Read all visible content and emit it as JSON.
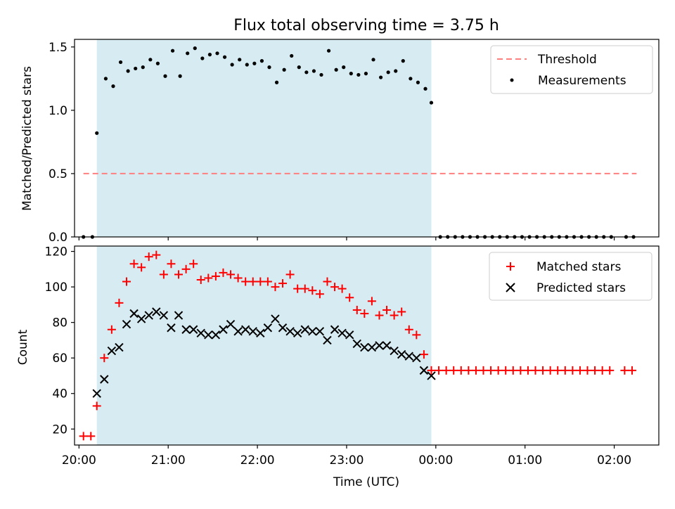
{
  "title": "Flux total observing time = 3.75 h",
  "colors": {
    "shade": "#add8e6",
    "threshold": "#ff7f7f",
    "measurement": "#000000",
    "matched": "#ff0000",
    "predicted": "#000000"
  },
  "chart_data": [
    {
      "type": "scatter",
      "ylabel": "Matched/Predicted stars",
      "ylim": [
        0,
        1.56
      ],
      "yticks": [
        0.0,
        0.5,
        1.0,
        1.5
      ],
      "ytick_labels": [
        "0.0",
        "0.5",
        "1.0",
        "1.5"
      ],
      "xlim": [
        "19:57",
        "02:30"
      ],
      "shaded_region": [
        "20:12",
        "23:57"
      ],
      "legend_position": "upper right",
      "threshold": {
        "name": "Threshold",
        "y": 0.5,
        "x": [
          "20:03",
          "02:15"
        ]
      },
      "series": [
        {
          "name": "Measurements",
          "x": [
            "20:03",
            "20:09",
            "20:12",
            "20:18",
            "20:23",
            "20:28",
            "20:33",
            "20:38",
            "20:43",
            "20:48",
            "20:53",
            "20:58",
            "21:03",
            "21:08",
            "21:13",
            "21:18",
            "21:23",
            "21:28",
            "21:33",
            "21:38",
            "21:43",
            "21:48",
            "21:53",
            "21:58",
            "22:03",
            "22:08",
            "22:13",
            "22:18",
            "22:23",
            "22:28",
            "22:33",
            "22:38",
            "22:43",
            "22:48",
            "22:53",
            "22:58",
            "23:03",
            "23:08",
            "23:13",
            "23:18",
            "23:23",
            "23:28",
            "23:33",
            "23:38",
            "23:43",
            "23:48",
            "23:53",
            "23:57",
            "00:03",
            "00:08",
            "00:13",
            "00:18",
            "00:23",
            "00:28",
            "00:33",
            "00:38",
            "00:43",
            "00:48",
            "00:53",
            "00:58",
            "01:03",
            "01:08",
            "01:13",
            "01:18",
            "01:23",
            "01:28",
            "01:33",
            "01:38",
            "01:43",
            "01:48",
            "01:53",
            "01:58",
            "02:08",
            "02:13"
          ],
          "y": [
            0,
            0,
            0.82,
            1.25,
            1.19,
            1.38,
            1.31,
            1.33,
            1.34,
            1.4,
            1.37,
            1.27,
            1.47,
            1.27,
            1.45,
            1.49,
            1.41,
            1.44,
            1.45,
            1.42,
            1.36,
            1.4,
            1.36,
            1.37,
            1.39,
            1.34,
            1.22,
            1.32,
            1.43,
            1.34,
            1.3,
            1.31,
            1.28,
            1.47,
            1.32,
            1.34,
            1.29,
            1.28,
            1.29,
            1.4,
            1.26,
            1.3,
            1.31,
            1.39,
            1.25,
            1.22,
            1.17,
            1.06,
            0,
            0,
            0,
            0,
            0,
            0,
            0,
            0,
            0,
            0,
            0,
            0,
            0,
            0,
            0,
            0,
            0,
            0,
            0,
            0,
            0,
            0,
            0,
            0,
            0,
            0
          ]
        }
      ]
    },
    {
      "type": "scatter",
      "xlabel": "Time (UTC)",
      "ylabel": "Count",
      "ylim": [
        11,
        123
      ],
      "yticks": [
        20,
        40,
        60,
        80,
        100,
        120
      ],
      "ytick_labels": [
        "20",
        "40",
        "60",
        "80",
        "100",
        "120"
      ],
      "xlim": [
        "19:57",
        "02:30"
      ],
      "xticks": [
        "20:00",
        "21:00",
        "22:00",
        "23:00",
        "00:00",
        "01:00",
        "02:00"
      ],
      "shaded_region": [
        "20:12",
        "23:57"
      ],
      "legend_position": "upper right",
      "series": [
        {
          "name": "Matched stars",
          "x": [
            "20:03",
            "20:08",
            "20:12",
            "20:17",
            "20:22",
            "20:27",
            "20:32",
            "20:37",
            "20:42",
            "20:47",
            "20:52",
            "20:57",
            "21:02",
            "21:07",
            "21:12",
            "21:17",
            "21:22",
            "21:27",
            "21:32",
            "21:37",
            "21:42",
            "21:47",
            "21:52",
            "21:57",
            "22:02",
            "22:07",
            "22:12",
            "22:17",
            "22:22",
            "22:27",
            "22:32",
            "22:37",
            "22:42",
            "22:47",
            "22:52",
            "22:57",
            "23:02",
            "23:07",
            "23:12",
            "23:17",
            "23:22",
            "23:27",
            "23:32",
            "23:37",
            "23:42",
            "23:47",
            "23:52",
            "23:57",
            "00:02",
            "00:07",
            "00:12",
            "00:17",
            "00:22",
            "00:27",
            "00:32",
            "00:37",
            "00:42",
            "00:47",
            "00:52",
            "00:57",
            "01:02",
            "01:07",
            "01:12",
            "01:17",
            "01:22",
            "01:27",
            "01:32",
            "01:37",
            "01:42",
            "01:47",
            "01:52",
            "01:57",
            "02:07",
            "02:12"
          ],
          "y": [
            16,
            16,
            33,
            60,
            76,
            91,
            103,
            113,
            111,
            117,
            118,
            107,
            113,
            107,
            110,
            113,
            104,
            105,
            106,
            108,
            107,
            105,
            103,
            103,
            103,
            103,
            100,
            102,
            107,
            99,
            99,
            98,
            96,
            103,
            100,
            99,
            94,
            87,
            85,
            92,
            84,
            87,
            84,
            86,
            76,
            73,
            62,
            53,
            53,
            53,
            53,
            53,
            53,
            53,
            53,
            53,
            53,
            53,
            53,
            53,
            53,
            53,
            53,
            53,
            53,
            53,
            53,
            53,
            53,
            53,
            53,
            53,
            53,
            53
          ]
        },
        {
          "name": "Predicted stars",
          "x": [
            "20:12",
            "20:17",
            "20:22",
            "20:27",
            "20:32",
            "20:37",
            "20:42",
            "20:47",
            "20:52",
            "20:57",
            "21:02",
            "21:07",
            "21:12",
            "21:17",
            "21:22",
            "21:27",
            "21:32",
            "21:37",
            "21:42",
            "21:47",
            "21:52",
            "21:57",
            "22:02",
            "22:07",
            "22:12",
            "22:17",
            "22:22",
            "22:27",
            "22:32",
            "22:37",
            "22:42",
            "22:47",
            "22:52",
            "22:57",
            "23:02",
            "23:07",
            "23:12",
            "23:17",
            "23:22",
            "23:27",
            "23:32",
            "23:37",
            "23:42",
            "23:47",
            "23:52",
            "23:57"
          ],
          "y": [
            40,
            48,
            64,
            66,
            79,
            85,
            82,
            84,
            86,
            84,
            77,
            84,
            76,
            76,
            74,
            73,
            73,
            76,
            79,
            75,
            76,
            75,
            74,
            77,
            82,
            77,
            75,
            74,
            76,
            75,
            75,
            70,
            76,
            74,
            73,
            68,
            66,
            66,
            67,
            67,
            64,
            62,
            61,
            60,
            53,
            50
          ]
        }
      ]
    }
  ]
}
